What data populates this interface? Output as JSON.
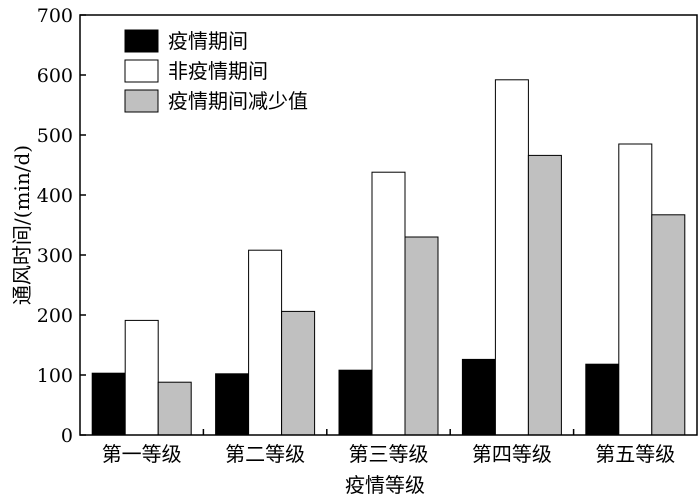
{
  "chart_data": {
    "type": "bar",
    "xlabel": "疫情等级",
    "ylabel": "通风时间/(min/d)",
    "categories": [
      "第一等级",
      "第二等级",
      "第三等级",
      "第四等级",
      "第五等级"
    ],
    "series": [
      {
        "name": "疫情期间",
        "color": "#000000",
        "values": [
          103,
          102,
          108,
          126,
          118
        ]
      },
      {
        "name": "非疫情期间",
        "color": "#ffffff",
        "values": [
          191,
          308,
          438,
          592,
          485
        ]
      },
      {
        "name": "疫情期间减少值",
        "color": "#c0c0c0",
        "values": [
          88,
          206,
          330,
          466,
          367
        ]
      }
    ],
    "ylim": [
      0,
      700
    ],
    "yticks": [
      0,
      100,
      200,
      300,
      400,
      500,
      600,
      700
    ],
    "grid": false,
    "legend": "top-left"
  }
}
